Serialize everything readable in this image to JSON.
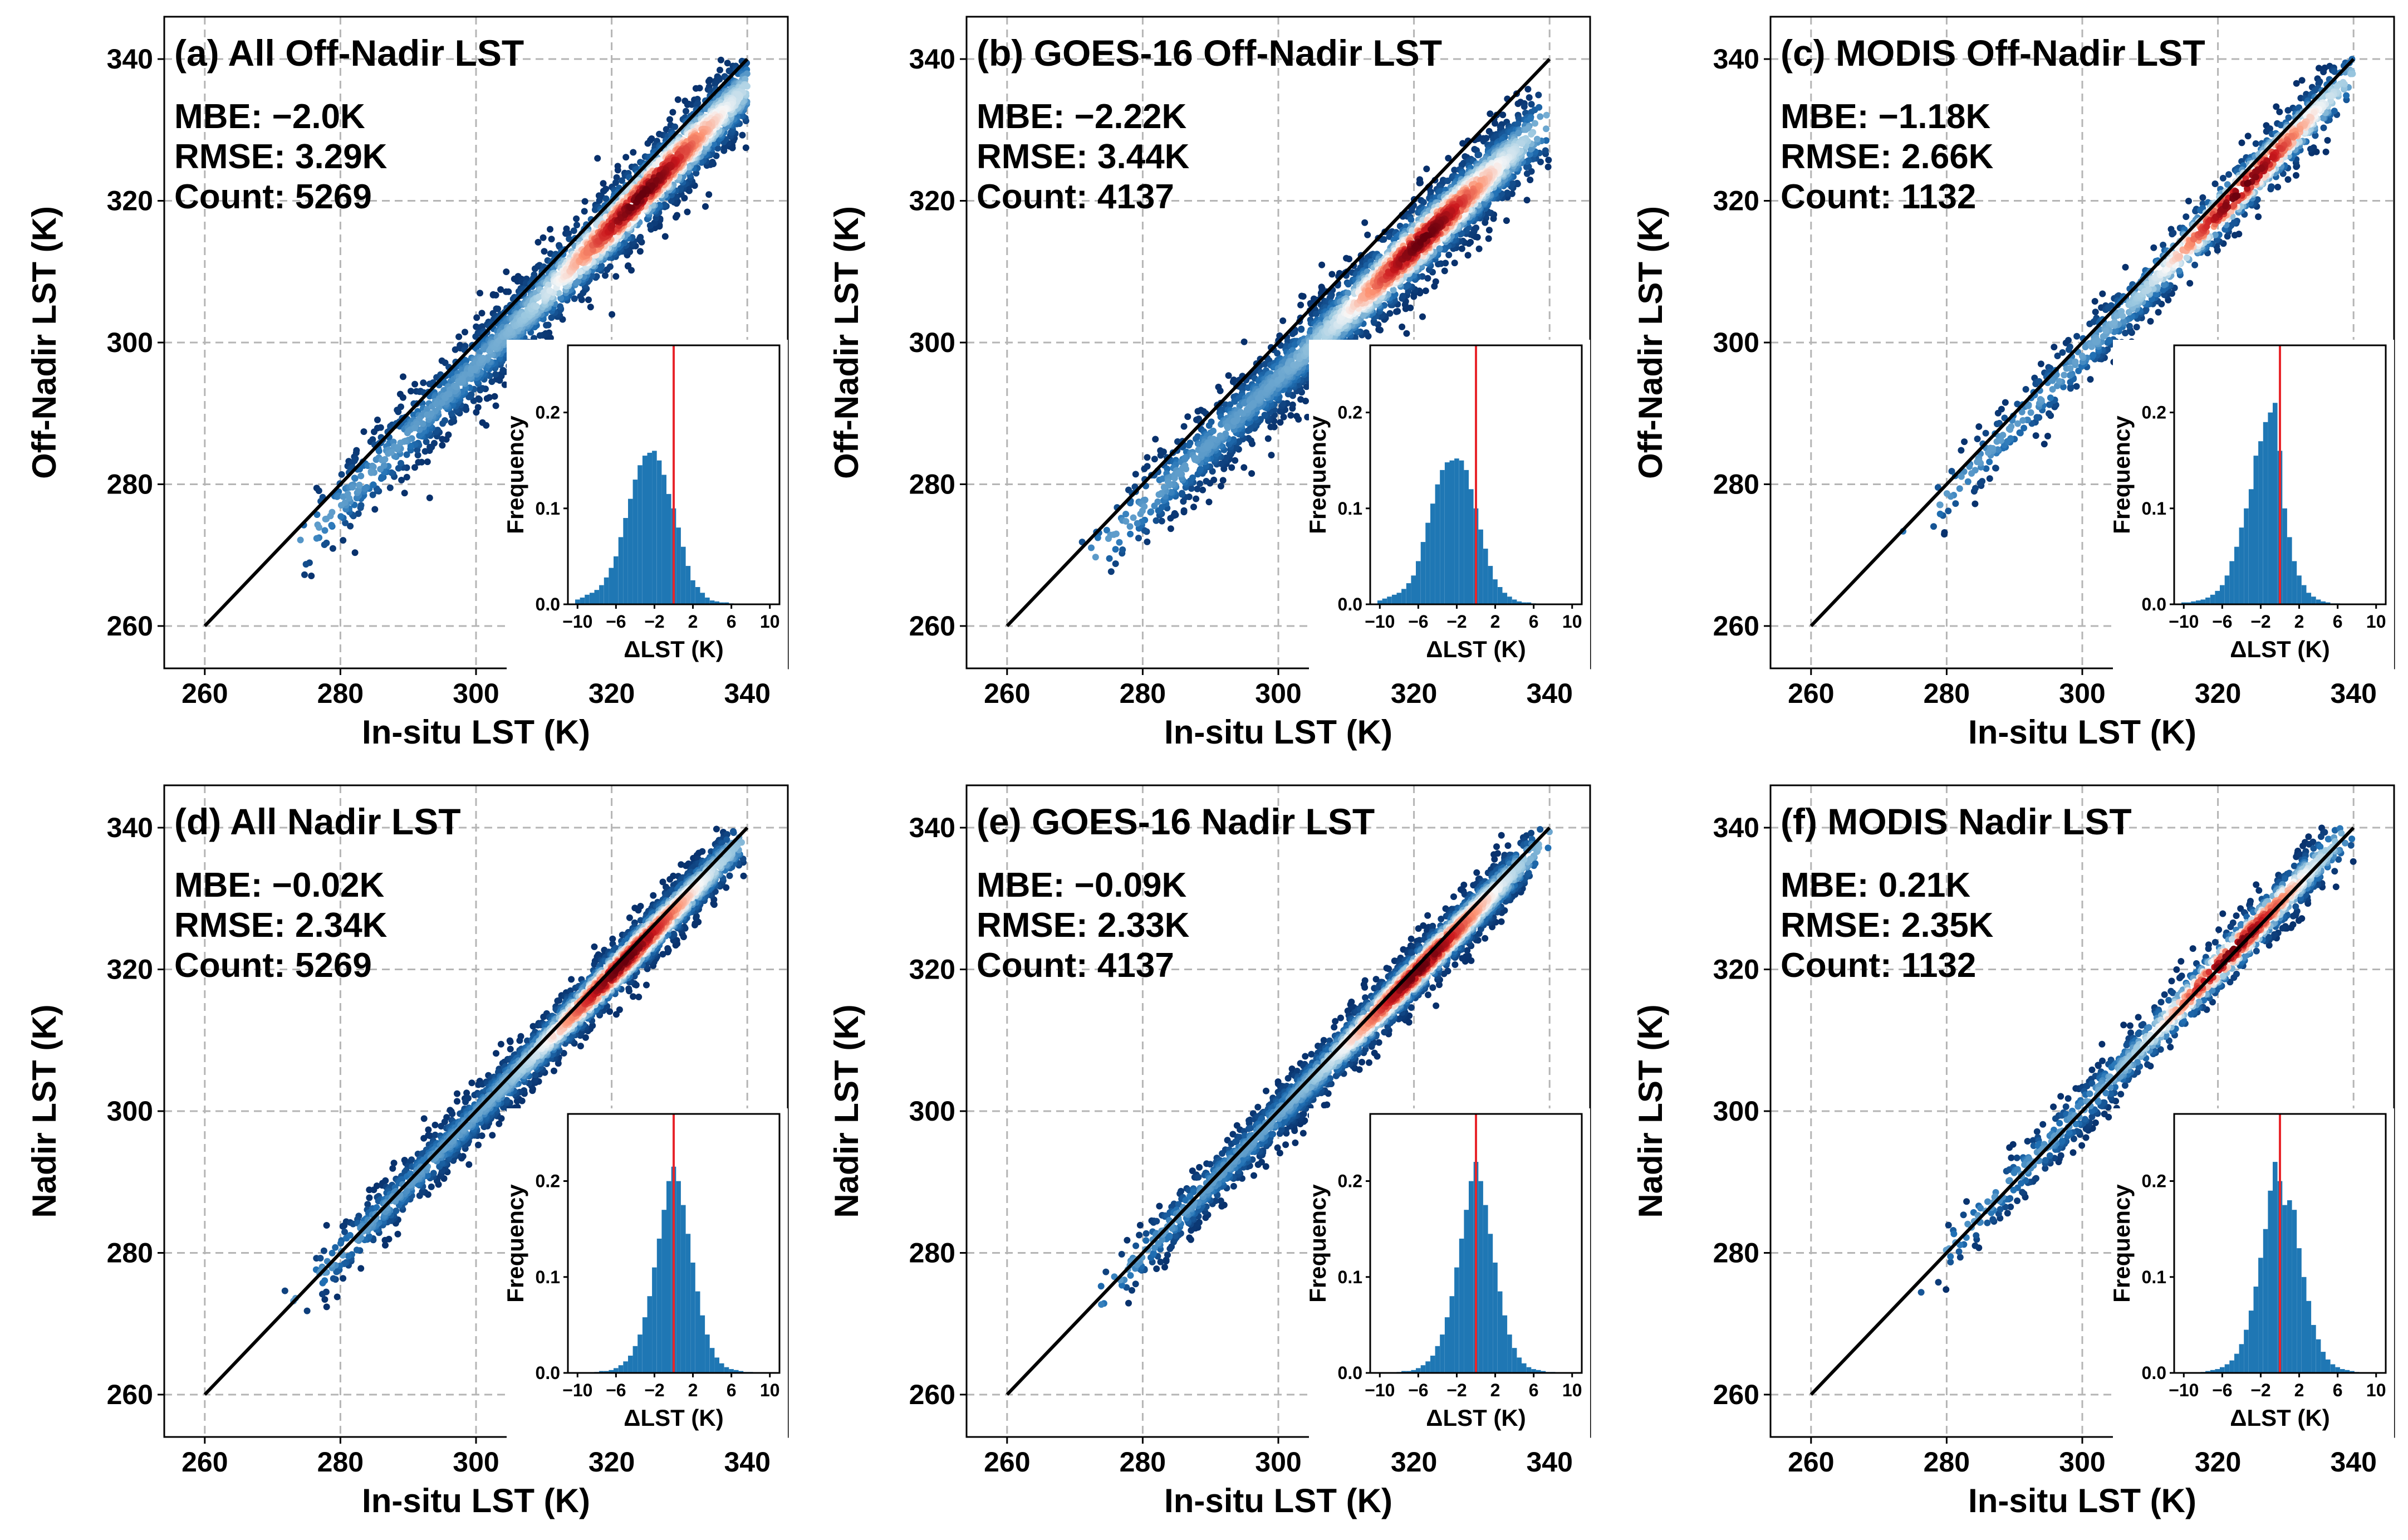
{
  "colors": {
    "dense_low": "#08306b",
    "dense_mid": "#f7f7f7",
    "dense_high": "#67000d",
    "one_to_one_line": "#000000",
    "histogram_bar": "#1f77b4",
    "zero_line": "#e8252b",
    "grid": "#b5b5b5"
  },
  "chart_data": [
    {
      "type": "scatter",
      "title": "(a) All Off-Nadir LST",
      "xlabel": "In-situ LST (K)",
      "ylabel": "Off-Nadir LST (K)",
      "xlim": [
        260,
        340
      ],
      "ylim": [
        260,
        340
      ],
      "xticks": [
        260,
        280,
        300,
        320,
        340
      ],
      "yticks": [
        260,
        280,
        300,
        320,
        340
      ],
      "grid": true,
      "stats": {
        "mbe": "MBE: −2.0K",
        "rmse": "RMSE: 3.29K",
        "count": "Count: 5269"
      },
      "reference_line": {
        "x": [
          260,
          340
        ],
        "y": [
          260,
          340
        ]
      },
      "density_trend": {
        "x": [
          262,
          340
        ],
        "y": [
          259.5,
          336
        ],
        "spread": 3.3
      },
      "point_count": 5269,
      "color_scale": "density, blue (low) to red (high)",
      "inset_histogram": {
        "type": "bar",
        "xlabel": "ΔLST (K)",
        "ylabel": "Frequency",
        "xlim": [
          -11,
          11
        ],
        "ylim": [
          0,
          0.27
        ],
        "xticks": [
          -10,
          -6,
          -2,
          2,
          6,
          10
        ],
        "yticks": [
          0.0,
          0.1,
          0.2
        ],
        "xtick_labels": [
          "−10",
          "−6",
          "−2",
          "2",
          "6",
          "10"
        ],
        "ytick_labels": [
          "0.0",
          "0.1",
          "0.2"
        ],
        "bin_centers": [
          -10,
          -9.5,
          -9,
          -8.5,
          -8,
          -7.5,
          -7,
          -6.5,
          -6,
          -5.5,
          -5,
          -4.5,
          -4,
          -3.5,
          -3,
          -2.5,
          -2,
          -1.5,
          -1,
          -0.5,
          0,
          0.5,
          1,
          1.5,
          2,
          2.5,
          3,
          3.5,
          4,
          4.5,
          5,
          5.5,
          6
        ],
        "frequency": [
          0.005,
          0.007,
          0.01,
          0.012,
          0.015,
          0.02,
          0.028,
          0.038,
          0.05,
          0.07,
          0.09,
          0.11,
          0.13,
          0.145,
          0.155,
          0.158,
          0.16,
          0.15,
          0.135,
          0.115,
          0.1,
          0.08,
          0.06,
          0.04,
          0.025,
          0.018,
          0.012,
          0.007,
          0.004,
          0.003,
          0.002,
          0.002,
          0.001
        ],
        "zero_line_x": 0
      }
    },
    {
      "type": "scatter",
      "title": "(b) GOES-16 Off-Nadir LST",
      "xlabel": "In-situ LST (K)",
      "ylabel": "Off-Nadir LST (K)",
      "xlim": [
        260,
        340
      ],
      "ylim": [
        260,
        340
      ],
      "xticks": [
        260,
        280,
        300,
        320,
        340
      ],
      "yticks": [
        260,
        280,
        300,
        320,
        340
      ],
      "grid": true,
      "stats": {
        "mbe": "MBE: −2.22K",
        "rmse": "RMSE: 3.44K",
        "count": "Count: 4137"
      },
      "reference_line": {
        "x": [
          260,
          340
        ],
        "y": [
          260,
          340
        ]
      },
      "density_trend": {
        "x": [
          263,
          336
        ],
        "y": [
          261,
          328
        ],
        "spread": 3.4
      },
      "point_count": 4137,
      "color_scale": "density, blue (low) to red (high)",
      "inset_histogram": {
        "type": "bar",
        "xlabel": "ΔLST (K)",
        "ylabel": "Frequency",
        "xlim": [
          -11,
          11
        ],
        "ylim": [
          0,
          0.27
        ],
        "xticks": [
          -10,
          -6,
          -2,
          2,
          6,
          10
        ],
        "yticks": [
          0.0,
          0.1,
          0.2
        ],
        "xtick_labels": [
          "−10",
          "−6",
          "−2",
          "2",
          "6",
          "10"
        ],
        "ytick_labels": [
          "0.0",
          "0.1",
          "0.2"
        ],
        "bin_centers": [
          -10,
          -9.5,
          -9,
          -8.5,
          -8,
          -7.5,
          -7,
          -6.5,
          -6,
          -5.5,
          -5,
          -4.5,
          -4,
          -3.5,
          -3,
          -2.5,
          -2,
          -1.5,
          -1,
          -0.5,
          0,
          0.5,
          1,
          1.5,
          2,
          2.5,
          3,
          3.5,
          4,
          4.5,
          5,
          5.5,
          6
        ],
        "frequency": [
          0.004,
          0.006,
          0.008,
          0.01,
          0.012,
          0.016,
          0.022,
          0.03,
          0.045,
          0.065,
          0.085,
          0.105,
          0.125,
          0.14,
          0.148,
          0.15,
          0.152,
          0.15,
          0.14,
          0.12,
          0.1,
          0.078,
          0.058,
          0.04,
          0.026,
          0.018,
          0.012,
          0.008,
          0.005,
          0.003,
          0.002,
          0.002,
          0.001
        ],
        "zero_line_x": 0
      }
    },
    {
      "type": "scatter",
      "title": "(c) MODIS Off-Nadir LST",
      "xlabel": "In-situ LST (K)",
      "ylabel": "Off-Nadir LST (K)",
      "xlim": [
        260,
        340
      ],
      "ylim": [
        260,
        340
      ],
      "xticks": [
        260,
        280,
        300,
        320,
        340
      ],
      "yticks": [
        260,
        280,
        300,
        320,
        340
      ],
      "grid": true,
      "stats": {
        "mbe": "MBE: −1.18K",
        "rmse": "RMSE: 2.66K",
        "count": "Count: 1132"
      },
      "reference_line": {
        "x": [
          260,
          340
        ],
        "y": [
          260,
          340
        ]
      },
      "density_trend": {
        "x": [
          266,
          338
        ],
        "y": [
          264.5,
          336
        ],
        "spread": 2.6
      },
      "point_count": 1132,
      "color_scale": "density, blue (low) to red (high)",
      "inset_histogram": {
        "type": "bar",
        "xlabel": "ΔLST (K)",
        "ylabel": "Frequency",
        "xlim": [
          -11,
          11
        ],
        "ylim": [
          0,
          0.27
        ],
        "xticks": [
          -10,
          -6,
          -2,
          2,
          6,
          10
        ],
        "yticks": [
          0.0,
          0.1,
          0.2
        ],
        "xtick_labels": [
          "−10",
          "−6",
          "−2",
          "2",
          "6",
          "10"
        ],
        "ytick_labels": [
          "0.0",
          "0.1",
          "0.2"
        ],
        "bin_centers": [
          -10,
          -9.5,
          -9,
          -8.5,
          -8,
          -7.5,
          -7,
          -6.5,
          -6,
          -5.5,
          -5,
          -4.5,
          -4,
          -3.5,
          -3,
          -2.5,
          -2,
          -1.5,
          -1,
          -0.5,
          0,
          0.5,
          1,
          1.5,
          2,
          2.5,
          3,
          3.5,
          4,
          4.5,
          5,
          5.5,
          6
        ],
        "frequency": [
          0.002,
          0.002,
          0.003,
          0.004,
          0.005,
          0.007,
          0.01,
          0.014,
          0.02,
          0.03,
          0.045,
          0.06,
          0.08,
          0.1,
          0.12,
          0.155,
          0.17,
          0.19,
          0.2,
          0.21,
          0.16,
          0.1,
          0.07,
          0.045,
          0.03,
          0.02,
          0.012,
          0.008,
          0.005,
          0.003,
          0.002,
          0.001,
          0.001
        ],
        "zero_line_x": 0
      }
    },
    {
      "type": "scatter",
      "title": "(d) All Nadir LST",
      "xlabel": "In-situ LST (K)",
      "ylabel": "Nadir LST (K)",
      "xlim": [
        260,
        340
      ],
      "ylim": [
        260,
        340
      ],
      "xticks": [
        260,
        280,
        300,
        320,
        340
      ],
      "yticks": [
        260,
        280,
        300,
        320,
        340
      ],
      "grid": true,
      "stats": {
        "mbe": "MBE: −0.02K",
        "rmse": "RMSE: 2.34K",
        "count": "Count: 5269"
      },
      "reference_line": {
        "x": [
          260,
          340
        ],
        "y": [
          260,
          340
        ]
      },
      "density_trend": {
        "x": [
          264,
          336
        ],
        "y": [
          264,
          335
        ],
        "spread": 2.3
      },
      "point_count": 5269,
      "color_scale": "density, blue (low) to red (high)",
      "inset_histogram": {
        "type": "bar",
        "xlabel": "ΔLST (K)",
        "ylabel": "Frequency",
        "xlim": [
          -11,
          11
        ],
        "ylim": [
          0,
          0.27
        ],
        "xticks": [
          -10,
          -6,
          -2,
          2,
          6,
          10
        ],
        "yticks": [
          0.0,
          0.1,
          0.2
        ],
        "xtick_labels": [
          "−10",
          "−6",
          "−2",
          "2",
          "6",
          "10"
        ],
        "ytick_labels": [
          "0.0",
          "0.1",
          "0.2"
        ],
        "bin_centers": [
          -8,
          -7.5,
          -7,
          -6.5,
          -6,
          -5.5,
          -5,
          -4.5,
          -4,
          -3.5,
          -3,
          -2.5,
          -2,
          -1.5,
          -1,
          -0.5,
          0,
          0.5,
          1,
          1.5,
          2,
          2.5,
          3,
          3.5,
          4,
          4.5,
          5,
          5.5,
          6,
          6.5,
          7,
          7.5,
          8
        ],
        "frequency": [
          0.001,
          0.002,
          0.002,
          0.003,
          0.005,
          0.008,
          0.012,
          0.018,
          0.028,
          0.04,
          0.058,
          0.08,
          0.11,
          0.14,
          0.17,
          0.2,
          0.215,
          0.2,
          0.175,
          0.145,
          0.115,
          0.085,
          0.06,
          0.04,
          0.026,
          0.016,
          0.01,
          0.006,
          0.004,
          0.003,
          0.002,
          0.001,
          0.001
        ],
        "zero_line_x": 0
      }
    },
    {
      "type": "scatter",
      "title": "(e) GOES-16 Nadir LST",
      "xlabel": "In-situ LST (K)",
      "ylabel": "Nadir LST (K)",
      "xlim": [
        260,
        340
      ],
      "ylim": [
        260,
        340
      ],
      "xticks": [
        260,
        280,
        300,
        320,
        340
      ],
      "yticks": [
        260,
        280,
        300,
        320,
        340
      ],
      "grid": true,
      "stats": {
        "mbe": "MBE: −0.09K",
        "rmse": "RMSE: 2.33K",
        "count": "Count: 4137"
      },
      "reference_line": {
        "x": [
          260,
          340
        ],
        "y": [
          260,
          340
        ]
      },
      "density_trend": {
        "x": [
          264,
          335
        ],
        "y": [
          264,
          334
        ],
        "spread": 2.3
      },
      "point_count": 4137,
      "color_scale": "density, blue (low) to red (high)",
      "inset_histogram": {
        "type": "bar",
        "xlabel": "ΔLST (K)",
        "ylabel": "Frequency",
        "xlim": [
          -11,
          11
        ],
        "ylim": [
          0,
          0.27
        ],
        "xticks": [
          -10,
          -6,
          -2,
          2,
          6,
          10
        ],
        "yticks": [
          0.0,
          0.1,
          0.2
        ],
        "xtick_labels": [
          "−10",
          "−6",
          "−2",
          "2",
          "6",
          "10"
        ],
        "ytick_labels": [
          "0.0",
          "0.1",
          "0.2"
        ],
        "bin_centers": [
          -8,
          -7.5,
          -7,
          -6.5,
          -6,
          -5.5,
          -5,
          -4.5,
          -4,
          -3.5,
          -3,
          -2.5,
          -2,
          -1.5,
          -1,
          -0.5,
          0,
          0.5,
          1,
          1.5,
          2,
          2.5,
          3,
          3.5,
          4,
          4.5,
          5,
          5.5,
          6,
          6.5,
          7,
          7.5,
          8
        ],
        "frequency": [
          0.001,
          0.002,
          0.002,
          0.003,
          0.005,
          0.008,
          0.012,
          0.018,
          0.028,
          0.04,
          0.058,
          0.08,
          0.11,
          0.14,
          0.17,
          0.2,
          0.22,
          0.2,
          0.175,
          0.145,
          0.115,
          0.085,
          0.06,
          0.04,
          0.026,
          0.016,
          0.01,
          0.006,
          0.004,
          0.003,
          0.002,
          0.001,
          0.001
        ],
        "zero_line_x": 0
      }
    },
    {
      "type": "scatter",
      "title": "(f) MODIS Nadir LST",
      "xlabel": "In-situ LST (K)",
      "ylabel": "Nadir LST (K)",
      "xlim": [
        260,
        340
      ],
      "ylim": [
        260,
        340
      ],
      "xticks": [
        260,
        280,
        300,
        320,
        340
      ],
      "yticks": [
        260,
        280,
        300,
        320,
        340
      ],
      "grid": true,
      "stats": {
        "mbe": "MBE: 0.21K",
        "rmse": "RMSE: 2.35K",
        "count": "Count: 1132"
      },
      "reference_line": {
        "x": [
          260,
          340
        ],
        "y": [
          260,
          340
        ]
      },
      "density_trend": {
        "x": [
          267,
          336
        ],
        "y": [
          267.3,
          336.3
        ],
        "spread": 2.3
      },
      "point_count": 1132,
      "color_scale": "density, blue (low) to red (high)",
      "inset_histogram": {
        "type": "bar",
        "xlabel": "ΔLST (K)",
        "ylabel": "Frequency",
        "xlim": [
          -11,
          11
        ],
        "ylim": [
          0,
          0.27
        ],
        "xticks": [
          -10,
          -6,
          -2,
          2,
          6,
          10
        ],
        "yticks": [
          0.0,
          0.1,
          0.2
        ],
        "xtick_labels": [
          "−10",
          "−6",
          "−2",
          "2",
          "6",
          "10"
        ],
        "ytick_labels": [
          "0.0",
          "0.1",
          "0.2"
        ],
        "bin_centers": [
          -8,
          -7.5,
          -7,
          -6.5,
          -6,
          -5.5,
          -5,
          -4.5,
          -4,
          -3.5,
          -3,
          -2.5,
          -2,
          -1.5,
          -1,
          -0.5,
          0,
          0.5,
          1,
          1.5,
          2,
          2.5,
          3,
          3.5,
          4,
          4.5,
          5,
          5.5,
          6,
          6.5,
          7,
          7.5,
          8
        ],
        "frequency": [
          0.001,
          0.002,
          0.003,
          0.004,
          0.006,
          0.009,
          0.013,
          0.02,
          0.03,
          0.045,
          0.065,
          0.09,
          0.12,
          0.15,
          0.19,
          0.22,
          0.2,
          0.175,
          0.18,
          0.17,
          0.13,
          0.1,
          0.075,
          0.05,
          0.035,
          0.022,
          0.014,
          0.009,
          0.006,
          0.004,
          0.003,
          0.002,
          0.001
        ],
        "zero_line_x": 0
      }
    }
  ]
}
